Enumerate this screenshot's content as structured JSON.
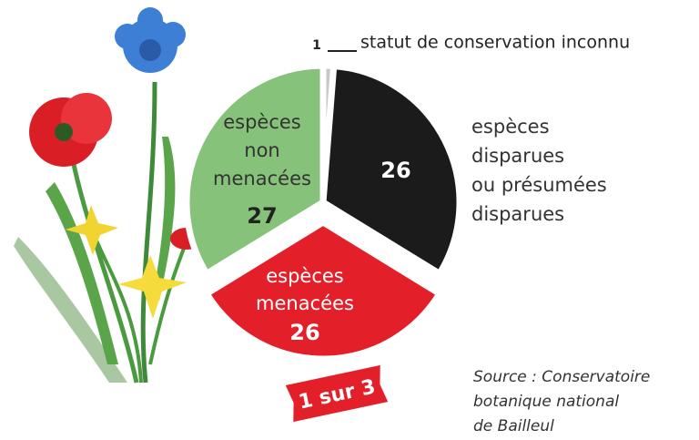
{
  "chart_data": {
    "type": "pie",
    "categories": [
      [
        "statut de conservation inconnu"
      ],
      [
        "espèces",
        "disparues",
        "ou présumées",
        "disparues"
      ],
      [
        "espèces",
        "menacées"
      ],
      [
        "espèces",
        "non",
        "menacées"
      ]
    ],
    "values": [
      1,
      26,
      26,
      27
    ],
    "colors": [
      "#c8c8c8",
      "#1b1b1b",
      "#e3202a",
      "#86c27a"
    ],
    "annotation": "1 sur 3",
    "source": [
      "Source : Conservatoire",
      "botanique national",
      "de Bailleul"
    ]
  }
}
